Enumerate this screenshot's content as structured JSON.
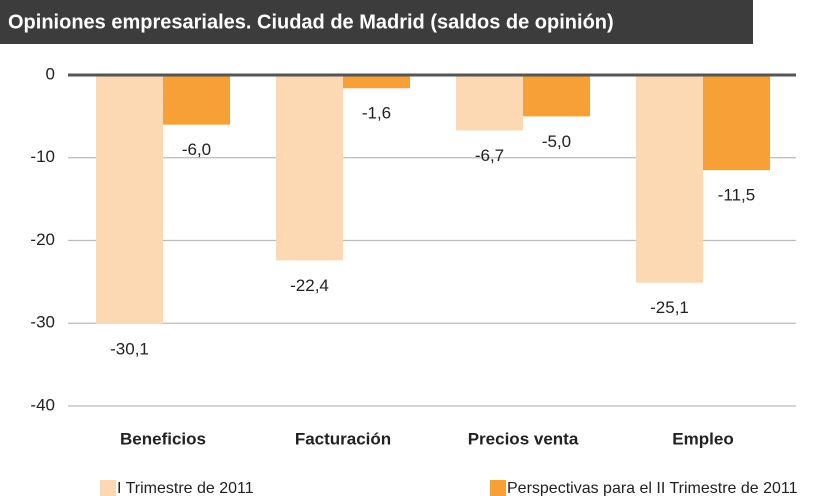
{
  "chart_data": {
    "type": "bar",
    "title": "Opiniones empresariales. Ciudad de Madrid  (saldos de opinión)",
    "categories": [
      "Beneficios",
      "Facturación",
      "Precios venta",
      "Empleo"
    ],
    "series": [
      {
        "name": "I Trimestre de 2011",
        "color": "#fcd9b2",
        "values": [
          -30.1,
          -22.4,
          -6.7,
          -25.1
        ],
        "value_labels": [
          "-30,1",
          "-22,4",
          "-6,7",
          "-25,1"
        ]
      },
      {
        "name": "Perspectivas para el II Trimestre de 2011",
        "color": "#f7a035",
        "values": [
          -6.0,
          -1.6,
          -5.0,
          -11.5
        ],
        "value_labels": [
          "-6,0",
          "-1,6",
          "-5,0",
          "-11,5"
        ]
      }
    ],
    "ylim": [
      -40,
      0
    ],
    "yticks": [
      0,
      -10,
      -20,
      -30,
      -40
    ],
    "grid": true
  }
}
